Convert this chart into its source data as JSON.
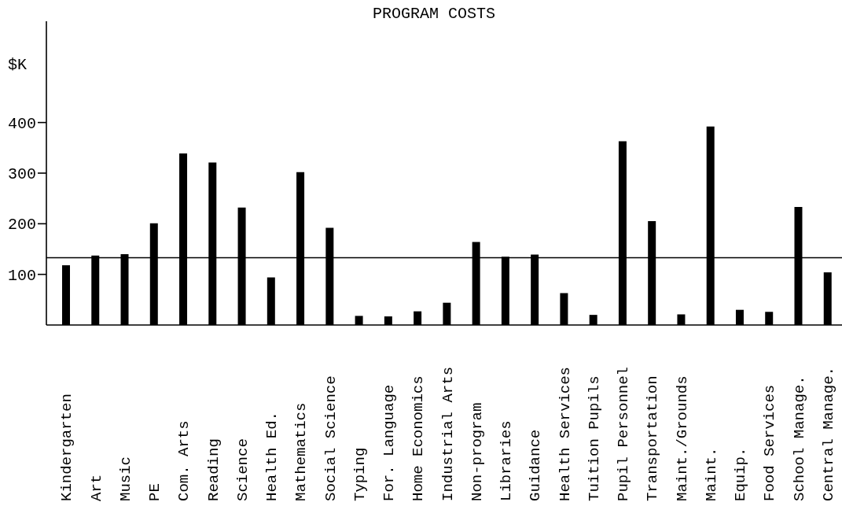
{
  "chart_data": {
    "type": "bar",
    "title": "PROGRAM COSTS",
    "ylabel": "$K",
    "categories": [
      "Kindergarten",
      "Art",
      "Music",
      "PE",
      "Com. Arts",
      "Reading",
      "Science",
      "Health Ed.",
      "Mathematics",
      "Social Science",
      "Typing",
      "For. Language",
      "Home Economics",
      "Industrial Arts",
      "Non-program",
      "Libraries",
      "Guidance",
      "Health Services",
      "Tuition Pupils",
      "Pupil Personnel",
      "Transportation",
      "Maint./Grounds",
      "Maint.",
      "Equip.",
      "Food Services",
      "School Manage.",
      "Central Manage."
    ],
    "values": [
      118,
      137,
      140,
      201,
      339,
      321,
      232,
      94,
      302,
      192,
      18,
      17,
      27,
      44,
      164,
      135,
      139,
      63,
      20,
      363,
      205,
      21,
      392,
      30,
      26,
      233,
      104
    ],
    "color": "#000000",
    "ylim": [
      0,
      600
    ],
    "yticks": [
      100,
      200,
      300,
      400
    ],
    "ref_lines": [
      {
        "axis": "y",
        "value": 133,
        "color": "#000000"
      }
    ]
  }
}
